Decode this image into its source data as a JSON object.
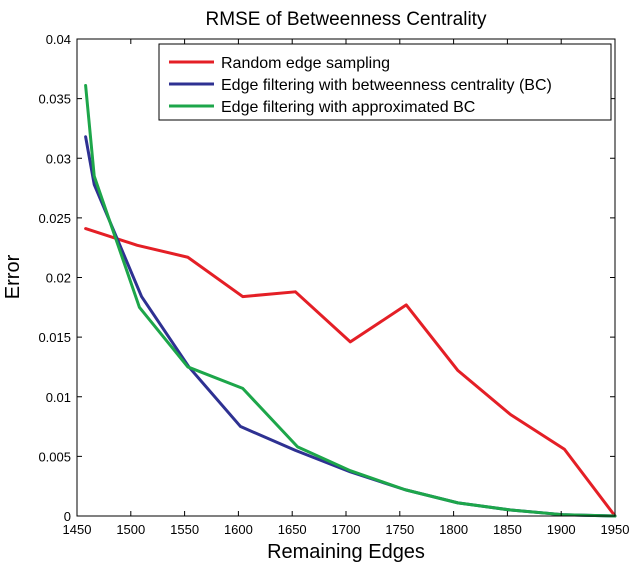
{
  "chart_data": {
    "type": "line",
    "title": "RMSE of Betweenness Centrality",
    "xlabel": "Remaining Edges",
    "ylabel": "Error",
    "xlim": [
      1450,
      1950
    ],
    "ylim": [
      0,
      0.04
    ],
    "xticks": [
      1450,
      1500,
      1550,
      1600,
      1650,
      1700,
      1750,
      1800,
      1850,
      1900,
      1950
    ],
    "yticks": [
      "0",
      "0.005",
      "0.01",
      "0.015",
      "0.02",
      "0.025",
      "0.03",
      "0.035",
      "0.04"
    ],
    "legend_position": "top-right",
    "grid": false,
    "series": [
      {
        "name": "Random edge sampling",
        "color": "#e41f26",
        "x": [
          1458,
          1506,
          1553,
          1604,
          1653,
          1704,
          1756,
          1804,
          1853,
          1903,
          1950
        ],
        "y": [
          0.0241,
          0.0227,
          0.0217,
          0.0184,
          0.0188,
          0.0146,
          0.0177,
          0.0122,
          0.0085,
          0.0056,
          0.0
        ]
      },
      {
        "name": "Edge filtering with betweenness centrality (BC)",
        "color": "#2e3192",
        "x": [
          1458,
          1466,
          1510,
          1554,
          1602,
          1653,
          1704,
          1755,
          1804,
          1853,
          1903,
          1950
        ],
        "y": [
          0.0318,
          0.0278,
          0.0184,
          0.0125,
          0.0075,
          0.0055,
          0.0037,
          0.0022,
          0.0011,
          0.0005,
          0.0001,
          0.0
        ]
      },
      {
        "name": "Edge filtering with approximated BC",
        "color": "#1da64a",
        "x": [
          1458,
          1466,
          1508,
          1553,
          1604,
          1655,
          1704,
          1755,
          1804,
          1853,
          1903,
          1950
        ],
        "y": [
          0.0361,
          0.0285,
          0.0175,
          0.0125,
          0.0107,
          0.0058,
          0.0038,
          0.0022,
          0.0011,
          0.0005,
          0.0001,
          0.0
        ]
      }
    ]
  }
}
